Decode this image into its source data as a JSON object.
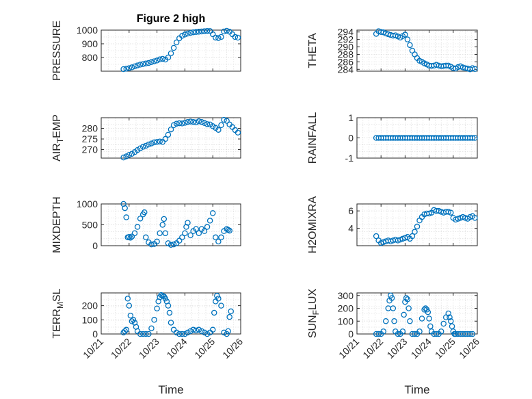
{
  "figure": {
    "title": "Figure 2 high",
    "marker_color": "#0072bd"
  },
  "chart_data": [
    {
      "type": "scatter",
      "title": "Figure 2 high",
      "ylabel": "PRESSURE",
      "xlabel": "",
      "xlim": [
        "10/21",
        "10/26"
      ],
      "ylim": [
        700,
        1000
      ],
      "yticks": [
        800,
        900,
        1000
      ],
      "yticklabels": [
        "800",
        "900",
        "1000"
      ],
      "grid": true,
      "series": [
        {
          "x": [
            21.8,
            21.9,
            22.0,
            22.1,
            22.2,
            22.3,
            22.4,
            22.5,
            22.6,
            22.7,
            22.8,
            22.9,
            23.0,
            23.1,
            23.2,
            23.3,
            23.4,
            23.5,
            23.6,
            23.7,
            23.8,
            23.9,
            24.0,
            24.1,
            24.2,
            24.3,
            24.4,
            24.5,
            24.6,
            24.7,
            24.8,
            24.9,
            25.0,
            25.1,
            25.2,
            25.3,
            25.4,
            25.5,
            25.6,
            25.7,
            25.8,
            25.9
          ],
          "y": [
            715,
            718,
            722,
            728,
            735,
            742,
            748,
            752,
            756,
            760,
            766,
            772,
            778,
            786,
            790,
            785,
            800,
            830,
            870,
            910,
            940,
            958,
            968,
            975,
            980,
            984,
            986,
            988,
            990,
            992,
            994,
            993,
            970,
            945,
            942,
            950,
            990,
            995,
            988,
            970,
            950,
            945
          ]
        }
      ]
    },
    {
      "type": "scatter",
      "title": "",
      "ylabel": "THETA",
      "xlabel": "",
      "xlim": [
        "10/21",
        "10/26"
      ],
      "ylim": [
        283.5,
        294.5
      ],
      "yticks": [
        284,
        286,
        288,
        290,
        292,
        294
      ],
      "yticklabels": [
        "284",
        "286",
        "288",
        "290",
        "292",
        "294"
      ],
      "grid": true,
      "series": [
        {
          "x": [
            21.8,
            21.9,
            22.0,
            22.1,
            22.2,
            22.3,
            22.4,
            22.5,
            22.6,
            22.7,
            22.8,
            22.9,
            23.0,
            23.1,
            23.2,
            23.3,
            23.4,
            23.5,
            23.6,
            23.7,
            23.8,
            23.9,
            24.0,
            24.1,
            24.2,
            24.3,
            24.4,
            24.5,
            24.6,
            24.7,
            24.8,
            24.9,
            25.0,
            25.1,
            25.2,
            25.3,
            25.4,
            25.5,
            25.6,
            25.7,
            25.8,
            25.9
          ],
          "y": [
            293.5,
            294.2,
            294.0,
            293.9,
            293.6,
            293.4,
            293.2,
            293.0,
            293.1,
            292.8,
            292.5,
            292.9,
            293.3,
            292.0,
            290.5,
            289.0,
            288.0,
            287.0,
            286.3,
            286.0,
            285.6,
            285.3,
            285.0,
            284.9,
            285.0,
            285.2,
            285.0,
            284.8,
            284.9,
            285.0,
            285.0,
            284.7,
            284.3,
            284.2,
            284.6,
            284.8,
            284.5,
            284.3,
            284.2,
            284.0,
            284.3,
            284.1
          ]
        }
      ]
    },
    {
      "type": "scatter",
      "title": "",
      "ylabel": "AIR_TEMP",
      "xlabel": "",
      "xlim": [
        "10/21",
        "10/26"
      ],
      "ylim": [
        266,
        285
      ],
      "yticks": [
        270,
        275,
        280
      ],
      "yticklabels": [
        "270",
        "275",
        "280"
      ],
      "grid": true,
      "series": [
        {
          "x": [
            21.8,
            21.9,
            22.0,
            22.1,
            22.2,
            22.3,
            22.4,
            22.5,
            22.6,
            22.7,
            22.8,
            22.9,
            23.0,
            23.1,
            23.2,
            23.3,
            23.4,
            23.5,
            23.6,
            23.7,
            23.8,
            23.9,
            24.0,
            24.1,
            24.2,
            24.3,
            24.4,
            24.5,
            24.6,
            24.7,
            24.8,
            24.9,
            25.0,
            25.1,
            25.2,
            25.3,
            25.4,
            25.5,
            25.6,
            25.7,
            25.8,
            25.9
          ],
          "y": [
            266.3,
            266.8,
            267.5,
            268.0,
            268.8,
            269.8,
            270.6,
            271.3,
            271.8,
            272.4,
            272.9,
            273.4,
            273.6,
            273.8,
            273.6,
            275.0,
            277.0,
            279.5,
            281.5,
            282.2,
            282.4,
            282.3,
            282.6,
            283.0,
            283.2,
            283.0,
            282.8,
            283.3,
            283.0,
            282.5,
            282.0,
            281.8,
            281.0,
            280.2,
            279.3,
            281.5,
            284.0,
            283.5,
            281.8,
            280.6,
            279.2,
            278.0
          ]
        }
      ]
    },
    {
      "type": "scatter",
      "title": "",
      "ylabel": "RAINFALL",
      "xlabel": "",
      "xlim": [
        "10/21",
        "10/26"
      ],
      "ylim": [
        -1,
        1
      ],
      "yticks": [
        -1,
        0,
        1
      ],
      "yticklabels": [
        "-1",
        "0",
        "1"
      ],
      "grid": true,
      "series": [
        {
          "x": [
            21.8,
            21.9,
            22.0,
            22.1,
            22.2,
            22.3,
            22.4,
            22.5,
            22.6,
            22.7,
            22.8,
            22.9,
            23.0,
            23.1,
            23.2,
            23.3,
            23.4,
            23.5,
            23.6,
            23.7,
            23.8,
            23.9,
            24.0,
            24.1,
            24.2,
            24.3,
            24.4,
            24.5,
            24.6,
            24.7,
            24.8,
            24.9,
            25.0,
            25.1,
            25.2,
            25.3,
            25.4,
            25.5,
            25.6,
            25.7,
            25.8,
            25.9
          ],
          "y": [
            0,
            0,
            0,
            0,
            0,
            0,
            0,
            0,
            0,
            0,
            0,
            0,
            0,
            0,
            0,
            0,
            0,
            0,
            0,
            0,
            0,
            0,
            0,
            0,
            0,
            0,
            0,
            0,
            0,
            0,
            0,
            0,
            0,
            0,
            0,
            0,
            0,
            0,
            0,
            0,
            0,
            0
          ]
        }
      ]
    },
    {
      "type": "scatter",
      "title": "",
      "ylabel": "MIXDEPTH",
      "xlabel": "",
      "xlim": [
        "10/21",
        "10/26"
      ],
      "ylim": [
        0,
        1000
      ],
      "yticks": [
        0,
        500,
        1000
      ],
      "yticklabels": [
        "0",
        "500",
        "1000"
      ],
      "grid": true,
      "series": [
        {
          "x": [
            21.8,
            21.85,
            21.9,
            21.95,
            22.0,
            22.05,
            22.1,
            22.2,
            22.3,
            22.4,
            22.5,
            22.55,
            22.6,
            22.7,
            22.8,
            22.9,
            23.0,
            23.1,
            23.2,
            23.25,
            23.3,
            23.4,
            23.5,
            23.6,
            23.7,
            23.8,
            23.9,
            24.0,
            24.05,
            24.1,
            24.2,
            24.3,
            24.4,
            24.5,
            24.6,
            24.7,
            24.8,
            24.9,
            25.0,
            25.1,
            25.2,
            25.3,
            25.4,
            25.5,
            25.55,
            25.6
          ],
          "y": [
            1000,
            900,
            680,
            200,
            210,
            190,
            220,
            300,
            450,
            650,
            750,
            800,
            200,
            80,
            30,
            40,
            100,
            300,
            500,
            640,
            300,
            60,
            20,
            30,
            60,
            120,
            200,
            300,
            450,
            550,
            250,
            350,
            400,
            300,
            400,
            350,
            450,
            600,
            780,
            200,
            100,
            200,
            350,
            400,
            380,
            360
          ]
        }
      ]
    },
    {
      "type": "scatter",
      "title": "",
      "ylabel": "H2OMIXRA",
      "xlabel": "",
      "xlim": [
        "10/21",
        "10/26"
      ],
      "ylim": [
        2,
        6.8
      ],
      "yticks": [
        4,
        6
      ],
      "yticklabels": [
        "4",
        "6"
      ],
      "grid": true,
      "series": [
        {
          "x": [
            21.8,
            21.9,
            22.0,
            22.1,
            22.2,
            22.3,
            22.4,
            22.5,
            22.6,
            22.7,
            22.8,
            22.9,
            23.0,
            23.1,
            23.2,
            23.3,
            23.4,
            23.5,
            23.6,
            23.7,
            23.8,
            23.9,
            24.0,
            24.1,
            24.2,
            24.3,
            24.4,
            24.5,
            24.6,
            24.7,
            24.8,
            24.9,
            25.0,
            25.1,
            25.2,
            25.3,
            25.4,
            25.5,
            25.6,
            25.7,
            25.8,
            25.9
          ],
          "y": [
            3.1,
            2.6,
            2.3,
            2.4,
            2.5,
            2.6,
            2.5,
            2.6,
            2.7,
            2.6,
            2.7,
            2.8,
            2.9,
            3.0,
            2.8,
            3.1,
            3.6,
            4.2,
            4.9,
            5.3,
            5.6,
            5.7,
            5.7,
            5.8,
            6.1,
            6.0,
            6.0,
            5.9,
            5.8,
            5.9,
            5.9,
            5.8,
            5.2,
            5.0,
            5.1,
            5.2,
            5.3,
            5.2,
            5.1,
            5.3,
            5.4,
            5.2
          ]
        }
      ]
    },
    {
      "type": "scatter",
      "title": "",
      "ylabel": "TERR_MSL",
      "xlabel": "Time",
      "xlim": [
        "10/21",
        "10/26"
      ],
      "ylim": [
        0,
        290
      ],
      "yticks": [
        0,
        100,
        200
      ],
      "yticklabels": [
        "0",
        "100",
        "200"
      ],
      "grid": true,
      "xticks": [
        "10/21",
        "10/22",
        "10/23",
        "10/24",
        "10/25",
        "10/26"
      ],
      "series": [
        {
          "x": [
            21.8,
            21.85,
            21.9,
            21.95,
            22.0,
            22.05,
            22.1,
            22.15,
            22.2,
            22.25,
            22.3,
            22.4,
            22.5,
            22.6,
            22.7,
            22.8,
            22.9,
            23.0,
            23.05,
            23.1,
            23.15,
            23.2,
            23.25,
            23.3,
            23.35,
            23.4,
            23.45,
            23.5,
            23.6,
            23.7,
            23.8,
            23.9,
            24.0,
            24.1,
            24.2,
            24.3,
            24.4,
            24.5,
            24.6,
            24.7,
            24.8,
            24.9,
            25.0,
            25.05,
            25.1,
            25.15,
            25.2,
            25.3,
            25.4,
            25.5,
            25.55,
            25.6,
            25.65
          ],
          "y": [
            10,
            20,
            30,
            250,
            200,
            130,
            90,
            100,
            80,
            50,
            20,
            0,
            0,
            0,
            0,
            40,
            100,
            180,
            230,
            260,
            275,
            270,
            265,
            250,
            230,
            200,
            150,
            80,
            30,
            10,
            0,
            0,
            0,
            10,
            20,
            30,
            25,
            30,
            20,
            10,
            0,
            10,
            30,
            150,
            230,
            270,
            250,
            200,
            10,
            0,
            20,
            120,
            160
          ]
        }
      ]
    },
    {
      "type": "scatter",
      "title": "",
      "ylabel": "SUN_FLUX",
      "xlabel": "Time",
      "xlim": [
        "10/21",
        "10/26"
      ],
      "ylim": [
        0,
        320
      ],
      "yticks": [
        0,
        100,
        200,
        300
      ],
      "yticklabels": [
        "0",
        "100",
        "200",
        "300"
      ],
      "grid": true,
      "xticks": [
        "10/21",
        "10/22",
        "10/23",
        "10/24",
        "10/25",
        "10/26"
      ],
      "series": [
        {
          "x": [
            21.8,
            21.9,
            22.0,
            22.1,
            22.2,
            22.3,
            22.35,
            22.4,
            22.45,
            22.5,
            22.55,
            22.6,
            22.7,
            22.8,
            22.9,
            22.95,
            23.0,
            23.05,
            23.1,
            23.15,
            23.2,
            23.3,
            23.4,
            23.5,
            23.6,
            23.7,
            23.8,
            23.85,
            23.9,
            23.95,
            24.0,
            24.05,
            24.1,
            24.2,
            24.3,
            24.4,
            24.5,
            24.6,
            24.7,
            24.8,
            24.85,
            24.9,
            24.95,
            25.0,
            25.05,
            25.1,
            25.2,
            25.3,
            25.4,
            25.5,
            25.6,
            25.7,
            25.8
          ],
          "y": [
            0,
            0,
            0,
            20,
            100,
            200,
            260,
            300,
            280,
            200,
            100,
            20,
            0,
            0,
            20,
            150,
            250,
            280,
            270,
            200,
            100,
            0,
            0,
            0,
            20,
            120,
            190,
            200,
            190,
            170,
            120,
            60,
            20,
            0,
            0,
            0,
            20,
            80,
            130,
            160,
            130,
            100,
            60,
            20,
            0,
            0,
            0,
            0,
            0,
            0,
            0,
            0,
            0
          ]
        }
      ]
    }
  ]
}
